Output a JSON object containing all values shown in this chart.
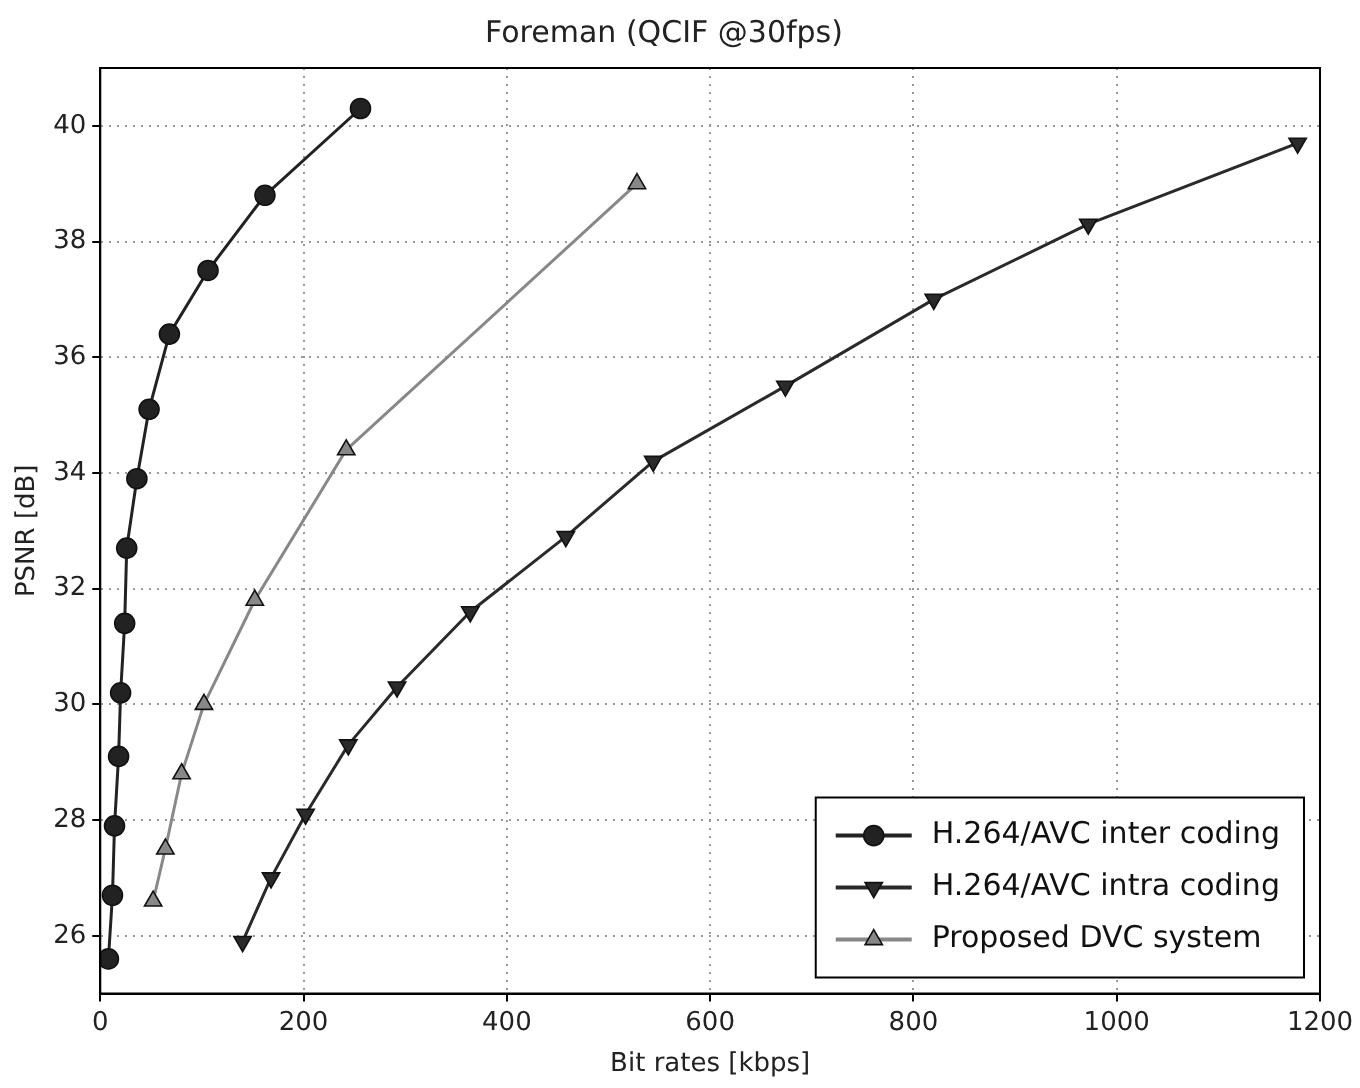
{
  "chart_data": {
    "type": "line",
    "title": "Foreman (QCIF @30fps)",
    "xlabel": "Bit rates [kbps]",
    "ylabel": "PSNR [dB]",
    "xlim": [
      0,
      1200
    ],
    "xticks": [
      0,
      200,
      400,
      600,
      800,
      1000,
      1200
    ],
    "ylim": [
      25,
      41
    ],
    "yticks": [
      26,
      28,
      30,
      32,
      34,
      36,
      38,
      40
    ],
    "grid": true,
    "legend": "bottom right",
    "line_style": "solid",
    "series": [
      {
        "name": "H.264/AVC inter coding",
        "color": "#222222",
        "marker": "circle",
        "x": [
          8,
          12,
          14,
          18,
          20,
          24,
          26,
          36,
          48,
          68,
          106,
          162,
          256
        ],
        "values": [
          25.6,
          26.7,
          27.9,
          29.1,
          30.2,
          31.4,
          32.7,
          33.9,
          35.1,
          36.4,
          37.5,
          38.8,
          40.3
        ]
      },
      {
        "name": "H.264/AVC intra coding",
        "color": "#2a2a2a",
        "marker": "triangle-down",
        "x": [
          140,
          168,
          202,
          244,
          292,
          364,
          458,
          544,
          674,
          820,
          972,
          1178
        ],
        "values": [
          25.9,
          27.0,
          28.1,
          29.3,
          30.3,
          31.6,
          32.9,
          34.2,
          35.5,
          37.0,
          38.3,
          39.7
        ]
      },
      {
        "name": "Proposed DVC system",
        "color": "#888888",
        "marker": "triangle",
        "x": [
          52,
          64,
          80,
          102,
          152,
          242,
          528
        ],
        "values": [
          26.6,
          27.5,
          28.8,
          30.0,
          31.8,
          34.4,
          39.0
        ]
      }
    ]
  }
}
